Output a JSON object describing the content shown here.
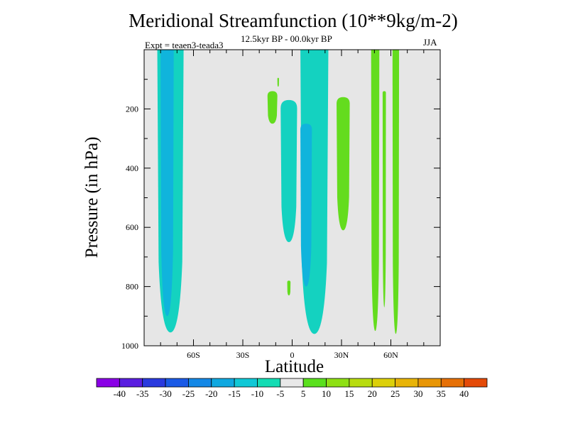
{
  "chart_data": {
    "type": "contour",
    "title": "Meridional Streamfunction (10**9kg/m-2)",
    "subtitle": "12.5kyr BP - 00.0kyr BP",
    "left_annotation": "Expt = teaen3-teada3",
    "right_annotation": "JJA",
    "xlabel": "Latitude",
    "ylabel": "Pressure (in hPa)",
    "x_range": [
      -90,
      90
    ],
    "y_range": [
      0,
      1000
    ],
    "y_reversed": true,
    "x_ticks": [
      {
        "value": -60,
        "label": "60S"
      },
      {
        "value": -30,
        "label": "30S"
      },
      {
        "value": 0,
        "label": "0"
      },
      {
        "value": 30,
        "label": "30N"
      },
      {
        "value": 60,
        "label": "60N"
      }
    ],
    "y_ticks": [
      {
        "value": 200,
        "label": "200"
      },
      {
        "value": 400,
        "label": "400"
      },
      {
        "value": 600,
        "label": "600"
      },
      {
        "value": 800,
        "label": "800"
      },
      {
        "value": 1000,
        "label": "1000"
      }
    ],
    "background_color": "#e6e6e6",
    "colorbar": {
      "boundaries": [
        "-40",
        "-35",
        "-30",
        "-25",
        "-20",
        "-15",
        "-10",
        "-5",
        "5",
        "10",
        "15",
        "20",
        "25",
        "30",
        "35",
        "40"
      ],
      "colors": [
        "#8a00e6",
        "#5a1ee0",
        "#2a3ade",
        "#1a5ae6",
        "#1488e6",
        "#10a8e0",
        "#10c8d6",
        "#14dcb4",
        "#e8e8e8",
        "#5ae01e",
        "#8ee014",
        "#b8dc10",
        "#dcd00a",
        "#e8b408",
        "#e89606",
        "#e67006",
        "#e44a08"
      ]
    },
    "regions": [
      {
        "name": "sh-cell-outer",
        "level": "-10",
        "lat": [
          -66,
          -82
        ],
        "p": [
          0,
          955
        ]
      },
      {
        "name": "sh-cell-core",
        "level": "-15",
        "lat": [
          -72,
          -80
        ],
        "p": [
          0,
          900
        ]
      },
      {
        "name": "tropical-cell-south",
        "level": "-10",
        "lat": [
          -7,
          3
        ],
        "p": [
          170,
          650
        ]
      },
      {
        "name": "tropical-cell-north",
        "level": "-10",
        "lat": [
          5,
          22
        ],
        "p": [
          0,
          960
        ]
      },
      {
        "name": "tropical-cell-core",
        "level": "-15",
        "lat": [
          5,
          12
        ],
        "p": [
          250,
          800
        ]
      },
      {
        "name": "ne-positive-upper",
        "level": "5",
        "lat": [
          -15,
          -9
        ],
        "p": [
          140,
          250
        ]
      },
      {
        "name": "ne-positive-dot",
        "level": "5",
        "lat": [
          -9,
          -8
        ],
        "p": [
          95,
          125
        ]
      },
      {
        "name": "ne-positive-low",
        "level": "5",
        "lat": [
          -3,
          -1
        ],
        "p": [
          780,
          830
        ]
      },
      {
        "name": "subtropical-positive",
        "level": "5",
        "lat": [
          27,
          35
        ],
        "p": [
          160,
          610
        ]
      },
      {
        "name": "nh-positive-a",
        "level": "5",
        "lat": [
          48,
          53
        ],
        "p": [
          0,
          950
        ]
      },
      {
        "name": "nh-positive-b",
        "level": "5",
        "lat": [
          55,
          57
        ],
        "p": [
          140,
          870
        ]
      },
      {
        "name": "nh-positive-c",
        "level": "5",
        "lat": [
          61,
          65
        ],
        "p": [
          0,
          960
        ]
      }
    ]
  }
}
